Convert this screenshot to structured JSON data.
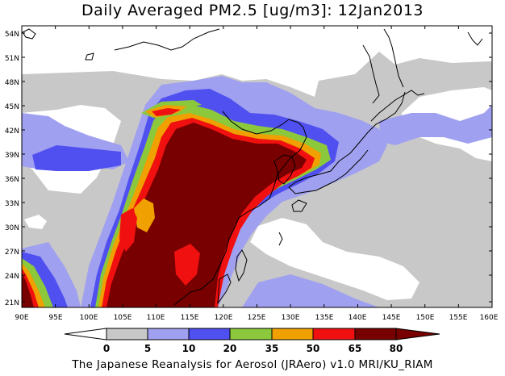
{
  "title": "Daily Averaged PM2.5 [ug/m3]: 12Jan2013",
  "footer": "The Japanese Reanalysis for Aerosol (JRAero) v1.0 MRI/KU_RIAM",
  "map": {
    "lon_range": [
      90,
      160
    ],
    "lat_range": [
      20,
      55
    ],
    "lon_ticks": [
      "90E",
      "95E",
      "100E",
      "105E",
      "110E",
      "115E",
      "120E",
      "125E",
      "130E",
      "135E",
      "140E",
      "145E",
      "150E",
      "155E",
      "160E"
    ],
    "lat_ticks": [
      "54N",
      "51N",
      "48N",
      "45N",
      "42N",
      "39N",
      "36N",
      "33N",
      "30N",
      "27N",
      "24N",
      "21N"
    ]
  },
  "colorbar": {
    "levels": [
      "0",
      "5",
      "10",
      "20",
      "35",
      "50",
      "65",
      "80"
    ],
    "colors": [
      "#ffffff",
      "#c8c8c8",
      "#a0a0f0",
      "#5050f0",
      "#8cc83c",
      "#f0a000",
      "#f01010",
      "#780000"
    ]
  }
}
